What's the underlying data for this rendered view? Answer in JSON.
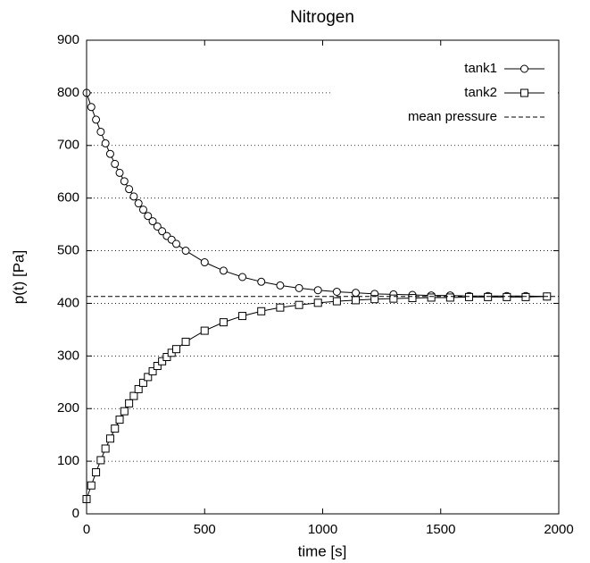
{
  "chart_data": {
    "type": "line",
    "title": "Nitrogen",
    "x_label": "time [s]",
    "y_label": "p(t) [Pa]",
    "xlim": [
      0,
      2000
    ],
    "ylim": [
      0,
      900
    ],
    "xticks": [
      0,
      500,
      1000,
      1500,
      2000
    ],
    "yticks": [
      0,
      100,
      200,
      300,
      400,
      500,
      600,
      700,
      800,
      900
    ],
    "grid": true,
    "legend": "top-right",
    "series": [
      {
        "name": "tank1",
        "color": "#000000",
        "marker": "circle",
        "dash": "solid",
        "x": [
          0,
          20,
          40,
          60,
          80,
          100,
          120,
          140,
          160,
          180,
          200,
          220,
          240,
          260,
          280,
          300,
          320,
          340,
          360,
          380,
          420,
          500,
          580,
          660,
          740,
          820,
          900,
          980,
          1060,
          1140,
          1220,
          1300,
          1380,
          1460,
          1540,
          1620,
          1700,
          1780,
          1860,
          1950
        ],
        "values": [
          800,
          773,
          749,
          726,
          704,
          684,
          665,
          648,
          632,
          617,
          603,
          590,
          578,
          566,
          556,
          546,
          537,
          528,
          521,
          513,
          500,
          478,
          462,
          450,
          441,
          434,
          429,
          425,
          422,
          420,
          418,
          417,
          416,
          415,
          415,
          414,
          414,
          414,
          414,
          413
        ]
      },
      {
        "name": "tank2",
        "color": "#000000",
        "marker": "square",
        "dash": "solid",
        "x": [
          0,
          20,
          40,
          60,
          80,
          100,
          120,
          140,
          160,
          180,
          200,
          220,
          240,
          260,
          280,
          300,
          320,
          340,
          360,
          380,
          420,
          500,
          580,
          660,
          740,
          820,
          900,
          980,
          1060,
          1140,
          1220,
          1300,
          1380,
          1460,
          1540,
          1620,
          1700,
          1780,
          1860,
          1950
        ],
        "values": [
          28,
          54,
          79,
          102,
          124,
          143,
          162,
          179,
          195,
          210,
          224,
          237,
          249,
          260,
          271,
          281,
          290,
          298,
          306,
          313,
          327,
          348,
          364,
          376,
          385,
          392,
          397,
          401,
          404,
          406,
          408,
          409,
          410,
          411,
          411,
          412,
          412,
          412,
          412,
          413
        ]
      },
      {
        "name": "mean pressure",
        "color": "#000000",
        "marker": "none",
        "dash": "dashed",
        "x": [
          0,
          2000
        ],
        "values": [
          413,
          413
        ]
      }
    ]
  }
}
